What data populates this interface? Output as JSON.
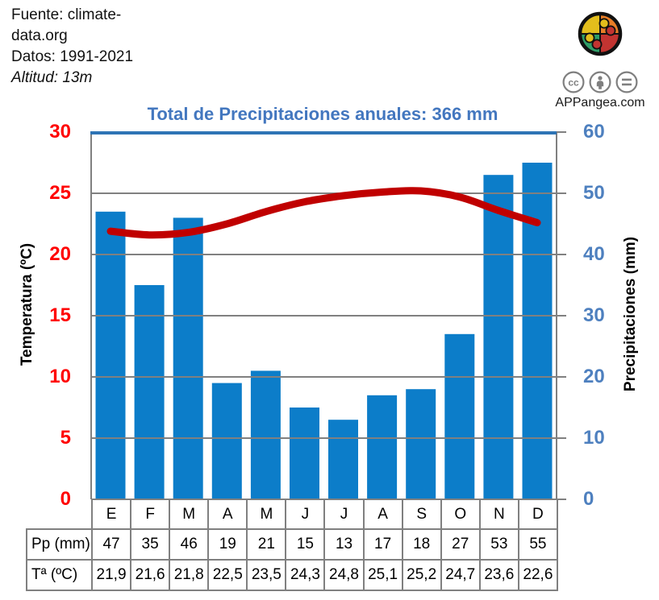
{
  "meta": {
    "fuente_line1": "Fuente: climate-",
    "fuente_line2": "data.org",
    "datos": "Datos: 1991-2021",
    "altitud": "Altitud: 13m"
  },
  "branding": {
    "site": "APPangea.com",
    "license_icons": [
      "cc-icon",
      "attribution-icon",
      "equal-icon"
    ],
    "logo_colors": {
      "yellow": "#E3BE1C",
      "orange": "#E87E27",
      "green": "#2F9E68",
      "red": "#C23431",
      "outline": "#111111"
    },
    "icon_color": "#7F7F7F"
  },
  "chart_data": {
    "type": "bar",
    "subtype": "climograph-bar-plus-line",
    "title": "Total de Precipitaciones anuales: 366 mm",
    "title_color": "#4377BF",
    "categories": [
      "E",
      "F",
      "M",
      "A",
      "M",
      "J",
      "J",
      "A",
      "S",
      "O",
      "N",
      "D"
    ],
    "series": [
      {
        "name": "Precipitaciones",
        "type": "bar",
        "axis": "right",
        "color": "#0C7DC9",
        "values": [
          47,
          35,
          46,
          19,
          21,
          15,
          13,
          17,
          18,
          27,
          53,
          55
        ]
      },
      {
        "name": "Temperatura",
        "type": "line",
        "axis": "left",
        "color": "#C00000",
        "values": [
          21.9,
          21.6,
          21.8,
          22.5,
          23.5,
          24.3,
          24.8,
          25.1,
          25.2,
          24.7,
          23.6,
          22.6
        ]
      }
    ],
    "left_axis": {
      "label": "Temperatura (ºC)",
      "min": 0,
      "max": 30,
      "step": 5,
      "ticks": [
        30,
        25,
        20,
        15,
        10,
        5,
        0
      ],
      "color": "#FF0000"
    },
    "right_axis": {
      "label": "Precipitaciones (mm)",
      "min": 0,
      "max": 60,
      "step": 10,
      "ticks": [
        60,
        50,
        40,
        30,
        20,
        10,
        0
      ],
      "color": "#4E80BF"
    },
    "grid": true,
    "grid_color": "#808080",
    "plot_top_border_color": "#2E74B5",
    "legend": "none"
  },
  "table": {
    "rows": [
      {
        "header": "",
        "cells": [
          "E",
          "F",
          "M",
          "A",
          "M",
          "J",
          "J",
          "A",
          "S",
          "O",
          "N",
          "D"
        ]
      },
      {
        "header": "Pp (mm)",
        "cells": [
          "47",
          "35",
          "46",
          "19",
          "21",
          "15",
          "13",
          "17",
          "18",
          "27",
          "53",
          "55"
        ]
      },
      {
        "header": "Tª (ºC)",
        "cells": [
          "21,9",
          "21,6",
          "21,8",
          "22,5",
          "23,5",
          "24,3",
          "24,8",
          "25,1",
          "25,2",
          "24,7",
          "23,6",
          "22,6"
        ]
      }
    ]
  }
}
